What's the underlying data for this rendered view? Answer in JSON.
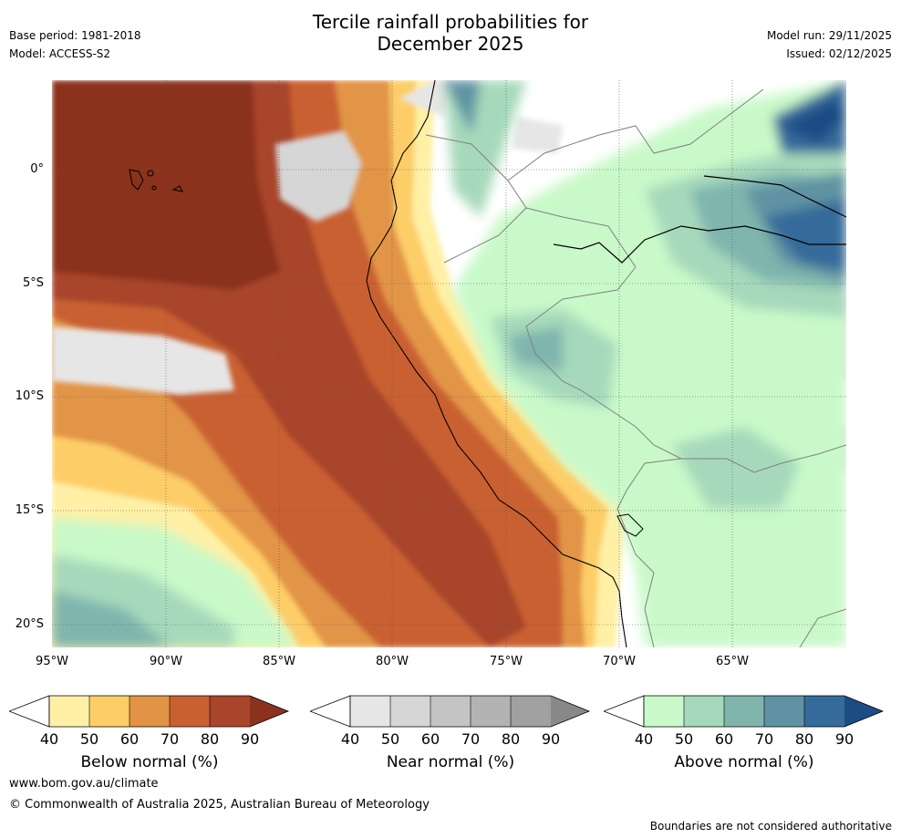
{
  "title": {
    "line1": "Tercile rainfall probabilities for",
    "line2": "December 2025"
  },
  "meta": {
    "base_period": "Base period: 1981-2018",
    "model": "Model: ACCESS-S2",
    "model_run": "Model run: 29/11/2025",
    "issued": "Issued: 02/12/2025"
  },
  "axes": {
    "lat_labels": [
      "0°",
      "5°S",
      "10°S",
      "15°S",
      "20°S"
    ],
    "lon_labels": [
      "95°W",
      "90°W",
      "85°W",
      "80°W",
      "75°W",
      "70°W",
      "65°W"
    ]
  },
  "colorbars": [
    {
      "title": "Below normal (%)",
      "ticks": [
        "40",
        "50",
        "60",
        "70",
        "80",
        "90"
      ],
      "colors": [
        "#fff0a6",
        "#fdcd68",
        "#e29446",
        "#c96030",
        "#a8452a",
        "#8b321f"
      ]
    },
    {
      "title": "Near normal (%)",
      "ticks": [
        "40",
        "50",
        "60",
        "70",
        "80",
        "90"
      ],
      "colors": [
        "#e6e6e6",
        "#d6d6d6",
        "#c4c4c4",
        "#b3b3b3",
        "#a0a0a0",
        "#888888"
      ]
    },
    {
      "title": "Above normal (%)",
      "ticks": [
        "40",
        "50",
        "60",
        "70",
        "80",
        "90"
      ],
      "colors": [
        "#c9f9c9",
        "#a6d9bb",
        "#7fb5ad",
        "#5f93a3",
        "#356b9a",
        "#1d4c84"
      ]
    }
  ],
  "footer": {
    "url": "www.bom.gov.au/climate",
    "copyright": "© Commonwealth of Australia 2025, Australian Bureau of Meteorology",
    "disclaimer": "Boundaries are not considered authoritative"
  }
}
